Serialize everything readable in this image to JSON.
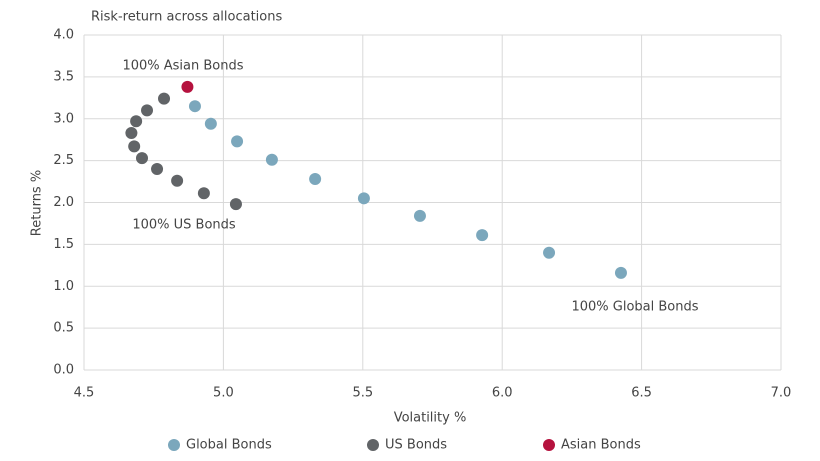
{
  "chart_data": {
    "type": "scatter",
    "title": "Risk-return across allocations",
    "x_label": "Volatility %",
    "y_label": "Returns %",
    "xlim": [
      4.5,
      7.0
    ],
    "ylim": [
      0.0,
      4.0
    ],
    "xticks": [
      4.5,
      {
        "value": 5.0,
        "label": "5.0"
      },
      5.5,
      {
        "value": 6.0,
        "label": "6.0"
      },
      6.5,
      {
        "value": 7.0,
        "label": "7.0"
      }
    ],
    "yticks": [
      {
        "value": 0.0,
        "label": "0.0"
      },
      0.5,
      {
        "value": 1.0,
        "label": "1.0"
      },
      1.5,
      {
        "value": 2.0,
        "label": "2.0"
      },
      2.5,
      {
        "value": 3.0,
        "label": "3.0"
      },
      3.5,
      {
        "value": 4.0,
        "label": "4.0"
      }
    ],
    "grid": true,
    "legend": "bottom",
    "series": [
      {
        "name": "Global Bonds",
        "color": "#7ba7bc",
        "x": [
          4.898,
          4.955,
          5.049,
          5.174,
          5.329,
          5.504,
          5.705,
          5.928,
          6.168,
          6.426
        ],
        "values": [
          3.15,
          2.94,
          2.73,
          2.51,
          2.28,
          2.05,
          1.84,
          1.61,
          1.4,
          1.16
        ]
      },
      {
        "name": "US Bonds",
        "color": "#616467",
        "x": [
          4.787,
          4.726,
          4.687,
          4.67,
          4.68,
          4.708,
          4.762,
          4.834,
          4.93,
          5.045
        ],
        "values": [
          3.24,
          3.1,
          2.97,
          2.83,
          2.67,
          2.53,
          2.4,
          2.26,
          2.11,
          1.98
        ]
      },
      {
        "name": "Asian Bonds",
        "color": "#b5123e",
        "x": [
          4.871
        ],
        "values": [
          3.38
        ]
      }
    ],
    "annotations": [
      "100% Asian Bonds",
      "100% US Bonds",
      "100% Global Bonds"
    ]
  }
}
